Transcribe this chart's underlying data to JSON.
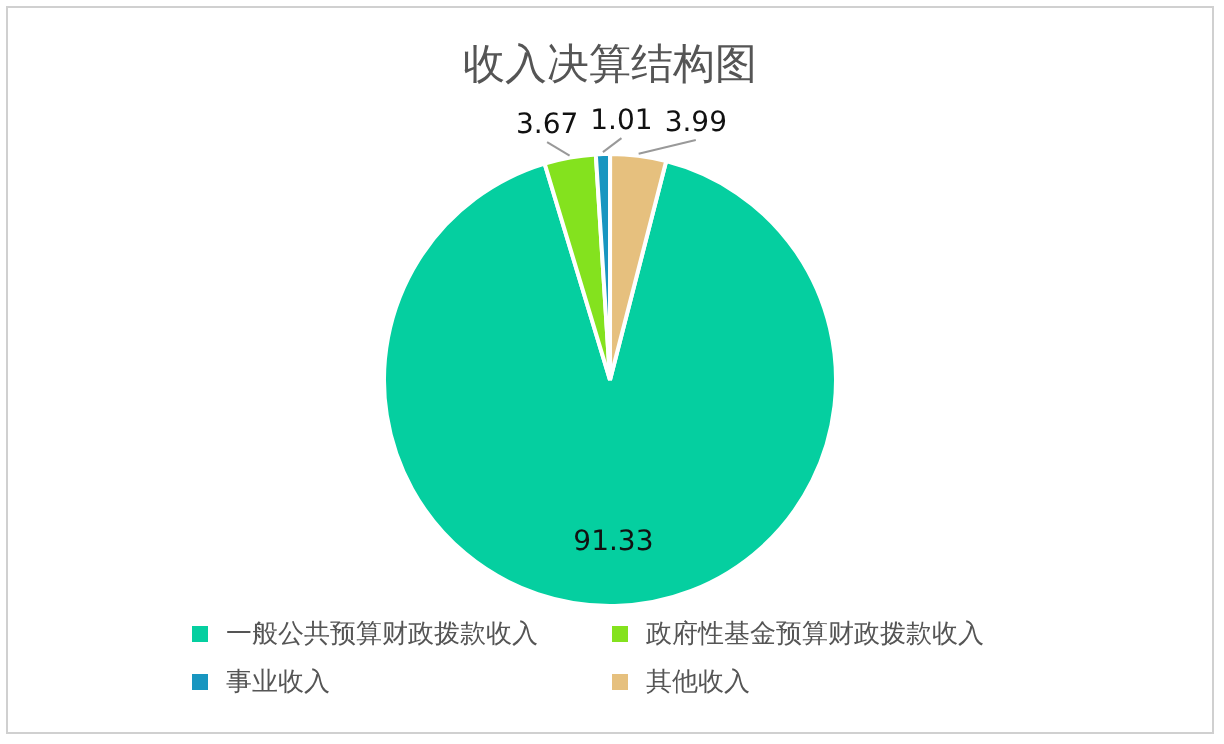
{
  "chart_data": {
    "type": "pie",
    "title": "收入决算结构图",
    "categories": [
      "一般公共预算财政拨款收入",
      "政府性基金预算财政拨款收入",
      "事业收入",
      "其他收入"
    ],
    "values": [
      91.33,
      3.67,
      1.01,
      3.99
    ],
    "colors": [
      "#05cfa0",
      "#84e21e",
      "#1896c0",
      "#e6c07e"
    ],
    "data_labels": true,
    "legend": "bottom"
  }
}
